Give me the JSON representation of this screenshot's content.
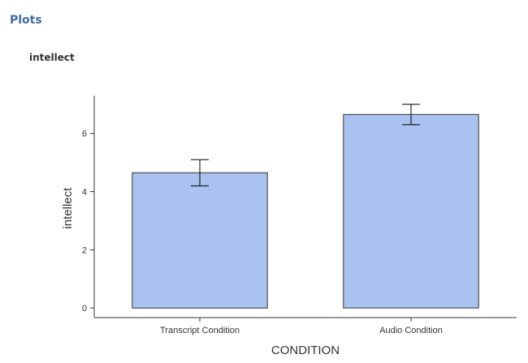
{
  "section": {
    "header": "Plots"
  },
  "chart_data": {
    "type": "bar",
    "title": "intellect",
    "xlabel": "CONDITION",
    "ylabel": "intellect",
    "categories": [
      "Transcript Condition",
      "Audio Condition"
    ],
    "values": [
      4.65,
      6.65
    ],
    "error_low": [
      4.2,
      6.3
    ],
    "error_high": [
      5.1,
      7.0
    ],
    "ylim": [
      -0.33,
      7.3
    ],
    "yticks": [
      0,
      2,
      4,
      6
    ],
    "grid": false,
    "legend": "none",
    "colors": {
      "bar_fill": "#a9c2f0",
      "bar_stroke": "#333333",
      "axis": "#333333",
      "header": "#3e6da6"
    }
  }
}
